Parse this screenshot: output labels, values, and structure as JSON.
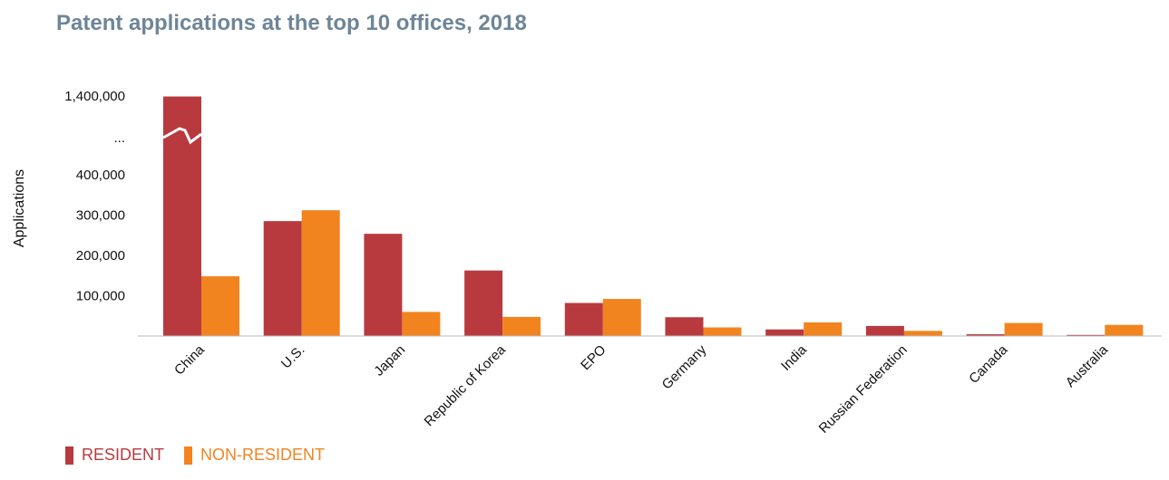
{
  "chart_data": {
    "type": "bar",
    "title": "Patent applications at the top 10 offices, 2018",
    "ylabel": "Applications",
    "xlabel": "",
    "ylim": [
      0,
      1400000
    ],
    "axis_break": {
      "between": [
        400000,
        1400000
      ],
      "label": "..."
    },
    "y_ticks": [
      "1,400,000",
      "...",
      "400,000",
      "300,000",
      "200,000",
      "100,000"
    ],
    "categories": [
      "China",
      "U.S.",
      "Japan",
      "Republic of Korea",
      "EPO",
      "Germany",
      "India",
      "Russian Federation",
      "Canada",
      "Australia"
    ],
    "series": [
      {
        "name": "RESIDENT",
        "color": "#b83a3f",
        "values": [
          1393815,
          285095,
          253630,
          162561,
          82000,
          46617,
          16289,
          24926,
          4310,
          2500
        ]
      },
      {
        "name": "NON-RESIDENT",
        "color": "#f2841f",
        "values": [
          148187,
          312046,
          59800,
          47431,
          92000,
          21278,
          33766,
          12611,
          32313,
          27600
        ]
      }
    ],
    "grid": false,
    "legend_position": "bottom-left"
  }
}
